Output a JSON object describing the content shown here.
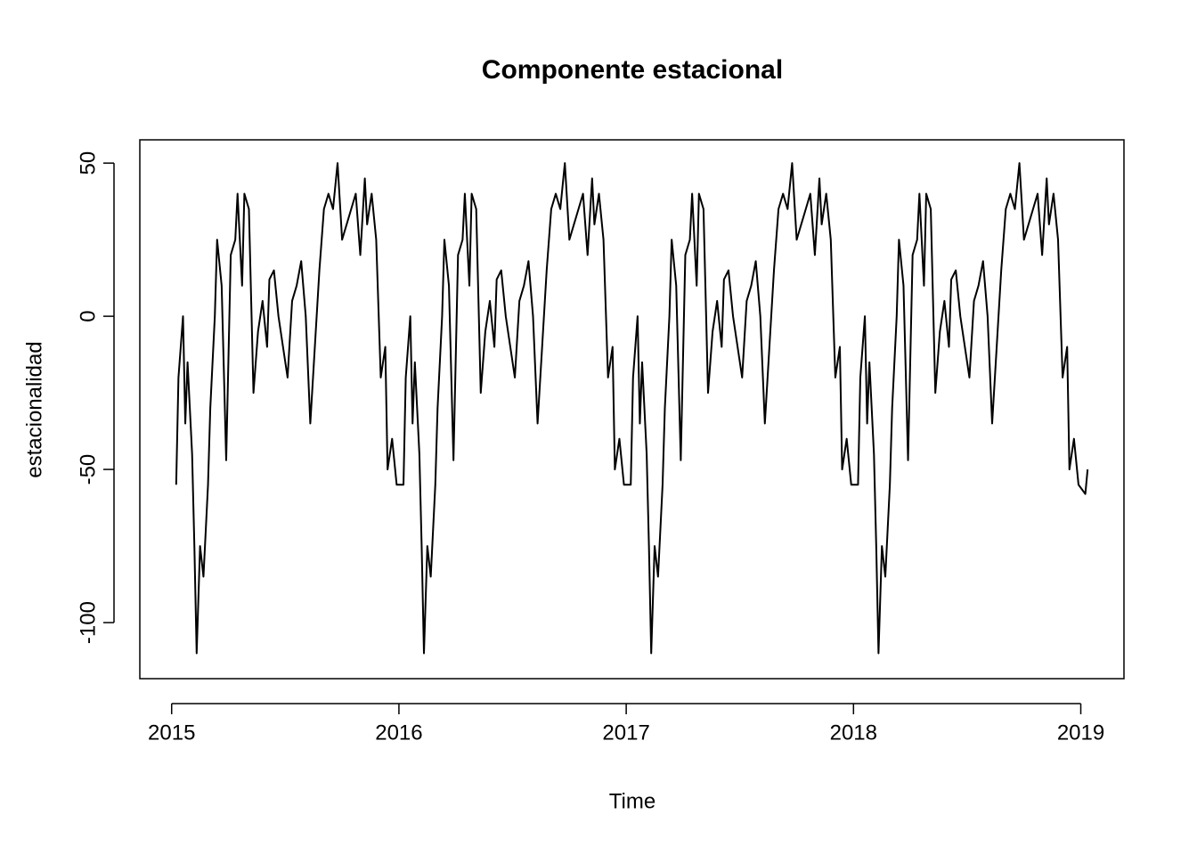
{
  "chart_data": {
    "type": "line",
    "title": "Componente estacional",
    "xlabel": "Time",
    "ylabel": "estacionalidad",
    "color": "#000000",
    "xlim": [
      2014.86,
      2019.19
    ],
    "ylim": [
      -118.3,
      57.6
    ],
    "xticks": [
      2015,
      2016,
      2017,
      2018,
      2019
    ],
    "yticks": [
      -100,
      -50,
      0,
      50
    ],
    "x": [
      2015.02,
      2015.03,
      2015.05,
      2015.06,
      2015.07,
      2015.09,
      2015.1,
      2015.11,
      2015.125,
      2015.14,
      2015.16,
      2015.17,
      2015.19,
      2015.2,
      2015.22,
      2015.24,
      2015.26,
      2015.28,
      2015.29,
      2015.31,
      2015.32,
      2015.34,
      2015.36,
      2015.38,
      2015.4,
      2015.42,
      2015.43,
      2015.45,
      2015.47,
      2015.49,
      2015.51,
      2015.53,
      2015.55,
      2015.57,
      2015.59,
      2015.61,
      2015.63,
      2015.65,
      2015.67,
      2015.69,
      2015.71,
      2015.73,
      2015.75,
      2015.77,
      2015.79,
      2015.81,
      2015.83,
      2015.85,
      2015.86,
      2015.88,
      2015.9,
      2015.92,
      2015.94,
      2015.95,
      2015.97,
      2015.99,
      2016.02,
      2016.03,
      2016.05,
      2016.06,
      2016.07,
      2016.09,
      2016.1,
      2016.11,
      2016.125,
      2016.14,
      2016.16,
      2016.17,
      2016.19,
      2016.2,
      2016.22,
      2016.24,
      2016.26,
      2016.28,
      2016.29,
      2016.31,
      2016.32,
      2016.34,
      2016.36,
      2016.38,
      2016.4,
      2016.42,
      2016.43,
      2016.45,
      2016.47,
      2016.49,
      2016.51,
      2016.53,
      2016.55,
      2016.57,
      2016.59,
      2016.61,
      2016.63,
      2016.65,
      2016.67,
      2016.69,
      2016.71,
      2016.73,
      2016.75,
      2016.77,
      2016.79,
      2016.81,
      2016.83,
      2016.85,
      2016.86,
      2016.88,
      2016.9,
      2016.92,
      2016.94,
      2016.95,
      2016.97,
      2016.99,
      2017.02,
      2017.03,
      2017.05,
      2017.06,
      2017.07,
      2017.09,
      2017.1,
      2017.11,
      2017.125,
      2017.14,
      2017.16,
      2017.17,
      2017.19,
      2017.2,
      2017.22,
      2017.24,
      2017.26,
      2017.28,
      2017.29,
      2017.31,
      2017.32,
      2017.34,
      2017.36,
      2017.38,
      2017.4,
      2017.42,
      2017.43,
      2017.45,
      2017.47,
      2017.49,
      2017.51,
      2017.53,
      2017.55,
      2017.57,
      2017.59,
      2017.61,
      2017.63,
      2017.65,
      2017.67,
      2017.69,
      2017.71,
      2017.73,
      2017.75,
      2017.77,
      2017.79,
      2017.81,
      2017.83,
      2017.85,
      2017.86,
      2017.88,
      2017.9,
      2017.92,
      2017.94,
      2017.95,
      2017.97,
      2017.99,
      2018.02,
      2018.03,
      2018.05,
      2018.06,
      2018.07,
      2018.09,
      2018.1,
      2018.11,
      2018.125,
      2018.14,
      2018.16,
      2018.17,
      2018.19,
      2018.2,
      2018.22,
      2018.24,
      2018.26,
      2018.28,
      2018.29,
      2018.31,
      2018.32,
      2018.34,
      2018.36,
      2018.38,
      2018.4,
      2018.42,
      2018.43,
      2018.45,
      2018.47,
      2018.49,
      2018.51,
      2018.53,
      2018.55,
      2018.57,
      2018.59,
      2018.61,
      2018.63,
      2018.65,
      2018.67,
      2018.69,
      2018.71,
      2018.73,
      2018.75,
      2018.77,
      2018.79,
      2018.81,
      2018.83,
      2018.85,
      2018.86,
      2018.88,
      2018.9,
      2018.92,
      2018.94,
      2018.95,
      2018.97,
      2018.99,
      2019.02,
      2019.03
    ],
    "values": [
      -55,
      -20,
      0,
      -35,
      -15,
      -45,
      -75,
      -110,
      -75,
      -85,
      -55,
      -30,
      0,
      25,
      10,
      -47,
      20,
      25,
      40,
      10,
      40,
      35,
      -25,
      -5,
      5,
      -10,
      12,
      15,
      0,
      -10,
      -20,
      5,
      10,
      18,
      0,
      -35,
      -10,
      15,
      35,
      40,
      35,
      50,
      25,
      30,
      35,
      40,
      20,
      45,
      30,
      40,
      25,
      -20,
      -10,
      -50,
      -40,
      -55,
      -55,
      -20,
      0,
      -35,
      -15,
      -45,
      -75,
      -110,
      -75,
      -85,
      -55,
      -30,
      0,
      25,
      10,
      -47,
      20,
      25,
      40,
      10,
      40,
      35,
      -25,
      -5,
      5,
      -10,
      12,
      15,
      0,
      -10,
      -20,
      5,
      10,
      18,
      0,
      -35,
      -10,
      15,
      35,
      40,
      35,
      50,
      25,
      30,
      35,
      40,
      20,
      45,
      30,
      40,
      25,
      -20,
      -10,
      -50,
      -40,
      -55,
      -55,
      -20,
      0,
      -35,
      -15,
      -45,
      -75,
      -110,
      -75,
      -85,
      -55,
      -30,
      0,
      25,
      10,
      -47,
      20,
      25,
      40,
      10,
      40,
      35,
      -25,
      -5,
      5,
      -10,
      12,
      15,
      0,
      -10,
      -20,
      5,
      10,
      18,
      0,
      -35,
      -10,
      15,
      35,
      40,
      35,
      50,
      25,
      30,
      35,
      40,
      20,
      45,
      30,
      40,
      25,
      -20,
      -10,
      -50,
      -40,
      -55,
      -55,
      -20,
      0,
      -35,
      -15,
      -45,
      -75,
      -110,
      -75,
      -85,
      -55,
      -30,
      0,
      25,
      10,
      -47,
      20,
      25,
      40,
      10,
      40,
      35,
      -25,
      -5,
      5,
      -10,
      12,
      15,
      0,
      -10,
      -20,
      5,
      10,
      18,
      0,
      -35,
      -10,
      15,
      35,
      40,
      35,
      50,
      25,
      30,
      35,
      40,
      20,
      45,
      30,
      40,
      25,
      -20,
      -10,
      -50,
      -40,
      -55,
      -58,
      -50
    ]
  }
}
